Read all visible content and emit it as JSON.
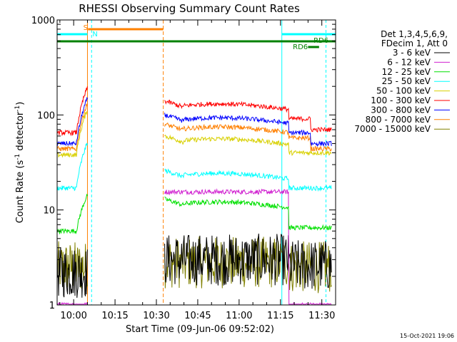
{
  "chart_data": {
    "type": "line",
    "title": "RHESSI Observing Summary Count Rates",
    "xlabel": "Start Time (09-Jun-06 09:52:02)",
    "ylabel_main": "Count Rate (s",
    "ylabel_sup": "-1",
    "ylabel_mid": " detector",
    "ylabel_sup2": "-1",
    "ylabel_end": ")",
    "y_scale": "log",
    "ylim": [
      1,
      1000
    ],
    "xlim_minutes": [
      -6,
      95
    ],
    "x_ticks": [
      {
        "m": 0,
        "label": "10:00"
      },
      {
        "m": 15,
        "label": "10:15"
      },
      {
        "m": 30,
        "label": "10:30"
      },
      {
        "m": 45,
        "label": "10:45"
      },
      {
        "m": 60,
        "label": "11:00"
      },
      {
        "m": 75,
        "label": "11:15"
      },
      {
        "m": 90,
        "label": "11:30"
      }
    ],
    "y_ticks": [
      {
        "v": 1,
        "label": "1"
      },
      {
        "v": 10,
        "label": "10"
      },
      {
        "v": 100,
        "label": "100"
      },
      {
        "v": 1000,
        "label": "1000"
      }
    ],
    "legend_header": [
      "Det 1,3,4,5,6,9,",
      "FDecim 1, Att 0"
    ],
    "legend_position": "right",
    "series": [
      {
        "name": "3 - 6 keV",
        "color": "#000000",
        "pre": 2.2,
        "post": 3.0,
        "late": 2.6,
        "noisy": true
      },
      {
        "name": "6 - 12 keV",
        "color": "#d020d0",
        "pre": 1.0,
        "post": 15.5,
        "late": 1.0
      },
      {
        "name": "12 - 25 keV",
        "color": "#00e000",
        "pre": 6.0,
        "post": 13.0,
        "late": 6.5
      },
      {
        "name": "25 - 50 keV",
        "color": "#00ffff",
        "pre": 17.0,
        "post": 26.0,
        "late": 17.0
      },
      {
        "name": "50 - 100 keV",
        "color": "#d8d000",
        "pre": 38.0,
        "post": 60.0,
        "late": 40.0
      },
      {
        "name": "100 - 300 keV",
        "color": "#ff0000",
        "pre": 65.0,
        "post": 140.0,
        "late": 70.0
      },
      {
        "name": "300 - 800 keV",
        "color": "#0000ff",
        "pre": 50.0,
        "post": 100.0,
        "late": 50.0
      },
      {
        "name": "800 - 7000 keV",
        "color": "#ff8000",
        "pre": 44.0,
        "post": 80.0,
        "late": 44.0
      },
      {
        "name": "7000 - 15000 keV",
        "color": "#808000",
        "pre": 2.5,
        "post": 2.8,
        "late": 2.5,
        "noisy": true
      }
    ],
    "flags": [
      {
        "label": "S",
        "color": "#ff8000"
      },
      {
        "label": "N",
        "color": "#00ffff"
      },
      {
        "label": "RD6",
        "color": "#008000"
      },
      {
        "label": "RD6",
        "color": "#008000"
      }
    ],
    "footer_date": "15-Oct-2021 19:06"
  }
}
